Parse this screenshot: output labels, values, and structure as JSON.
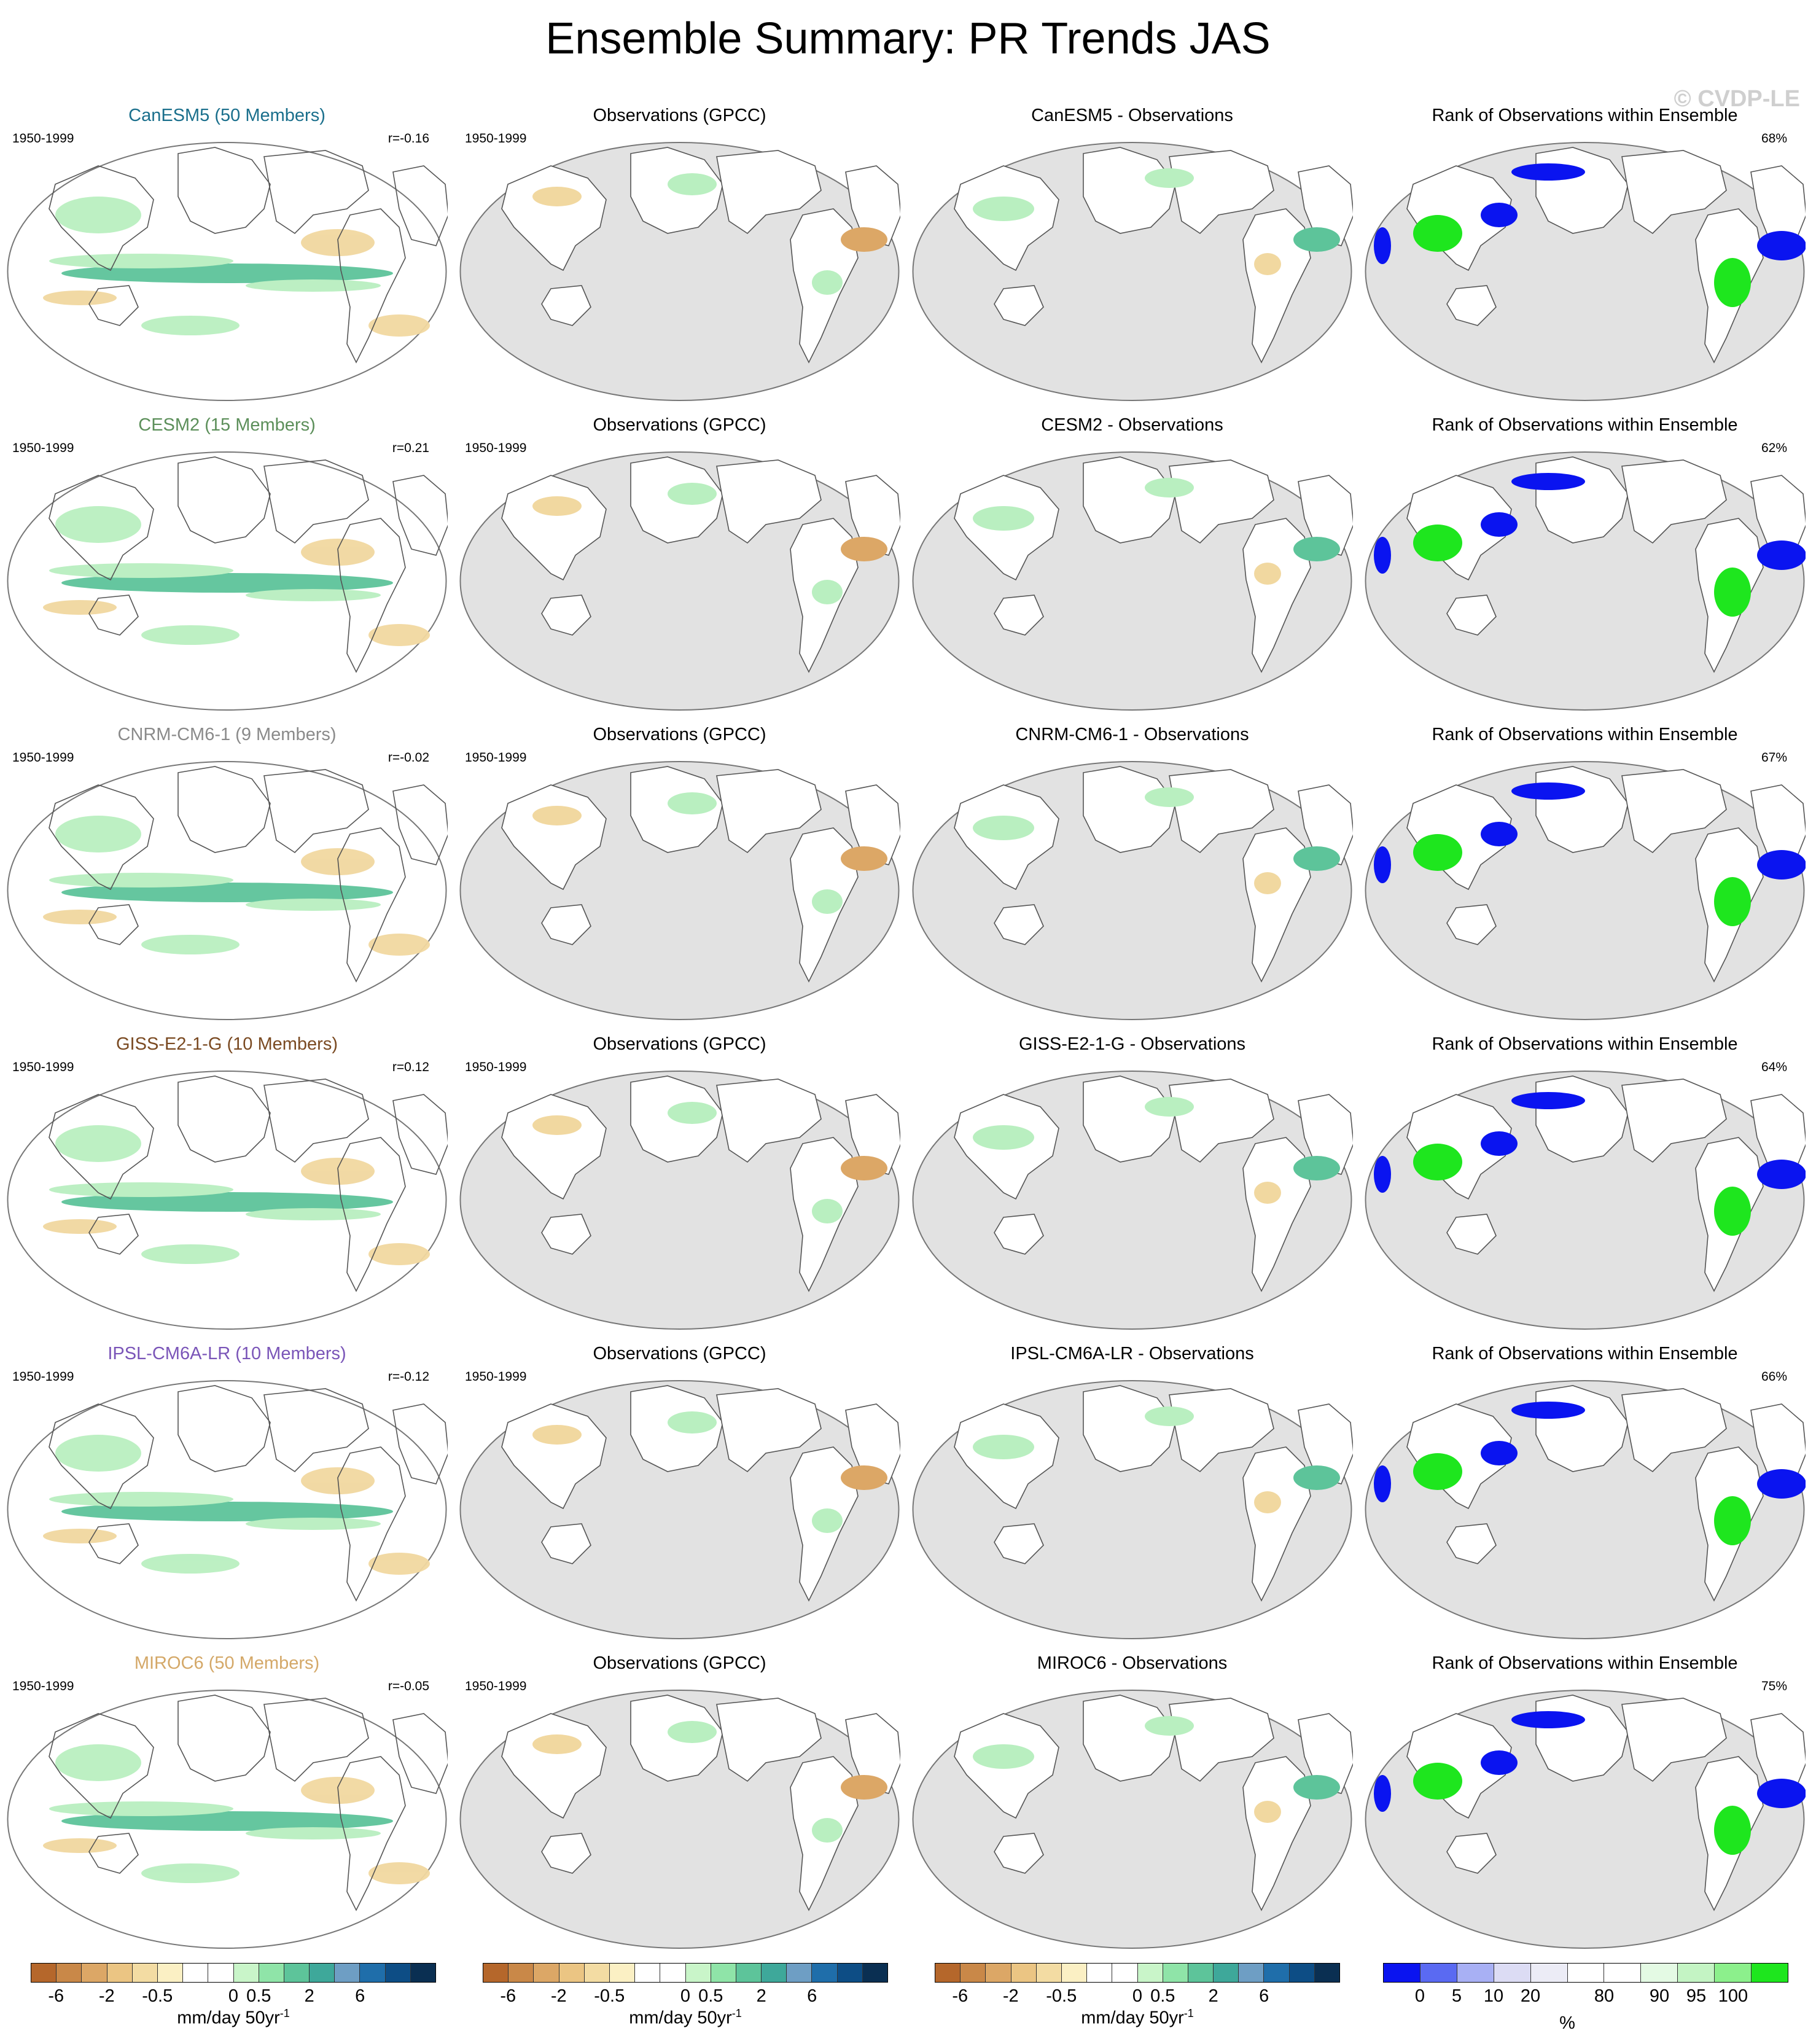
{
  "title": "Ensemble Summary: PR Trends JAS",
  "watermark": "© CVDP-LE",
  "col_obs_title": "Observations (GPCC)",
  "col_rank_title": "Rank of Observations within Ensemble",
  "rows": [
    {
      "model_title": "CanESM5 (50 Members)",
      "color": "#1a6f8c",
      "period": "1950-1999",
      "r": "r=-0.16",
      "diff_title": "CanESM5 - Observations",
      "rank_pct": "68%"
    },
    {
      "model_title": "CESM2 (15 Members)",
      "color": "#5c8f5a",
      "period": "1950-1999",
      "r": "r=0.21",
      "diff_title": "CESM2 - Observations",
      "rank_pct": "62%"
    },
    {
      "model_title": "CNRM-CM6-1 (9 Members)",
      "color": "#8a8a8a",
      "period": "1950-1999",
      "r": "r=-0.02",
      "diff_title": "CNRM-CM6-1 - Observations",
      "rank_pct": "67%"
    },
    {
      "model_title": "GISS-E2-1-G (10 Members)",
      "color": "#7a4a22",
      "period": "1950-1999",
      "r": "r=0.12",
      "diff_title": "GISS-E2-1-G - Observations",
      "rank_pct": "64%"
    },
    {
      "model_title": "IPSL-CM6A-LR (10 Members)",
      "color": "#7a55b8",
      "period": "1950-1999",
      "r": "r=-0.12",
      "diff_title": "IPSL-CM6A-LR - Observations",
      "rank_pct": "66%"
    },
    {
      "model_title": "MIROC6 (50 Members)",
      "color": "#d4a868",
      "period": "1950-1999",
      "r": "r=-0.05",
      "diff_title": "MIROC6 - Observations",
      "rank_pct": "75%"
    }
  ],
  "colorbar_trend": {
    "colors": [
      "#b5672b",
      "#c98848",
      "#dca766",
      "#ebc583",
      "#f3dca3",
      "#fbf0c4",
      "#ffffff",
      "#ffffff",
      "#c9f5c9",
      "#8fe4a8",
      "#5dc49a",
      "#3ea89a",
      "#6e9ec4",
      "#1f6eaa",
      "#0d4d85",
      "#0a2f52"
    ],
    "ticks": [
      "-6",
      "-2",
      "-0.5",
      "0",
      "0.5",
      "2",
      "6"
    ],
    "tick_positions": [
      0.0625,
      0.1875,
      0.3125,
      0.5,
      0.5625,
      0.6875,
      0.8125
    ],
    "unit": "mm/day 50yr",
    "unit_sup": "-1"
  },
  "colorbar_rank": {
    "colors": [
      "#0a14f0",
      "#5a6af2",
      "#a8b0f4",
      "#dcdcf4",
      "#ececf6",
      "#ffffff",
      "#ffffff",
      "#e4fae4",
      "#c4f4c4",
      "#8cf08c",
      "#1ee61e"
    ],
    "ticks": [
      "0",
      "5",
      "10",
      "20",
      "%",
      "80",
      "90",
      "95",
      "100"
    ],
    "tick_positions": [
      0.0909,
      0.1818,
      0.2727,
      0.3636,
      0.4545,
      0.5455,
      0.6818,
      0.7727,
      0.8636
    ],
    "unit": ""
  },
  "map_colors": {
    "land_gray": "#e2e2e2",
    "brown": "#f1d8a0",
    "brown_dark": "#dca766",
    "green": "#b9efc0",
    "teal": "#5dc49a",
    "blue_rank": "#0a14f0",
    "green_rank": "#1ee61e"
  }
}
